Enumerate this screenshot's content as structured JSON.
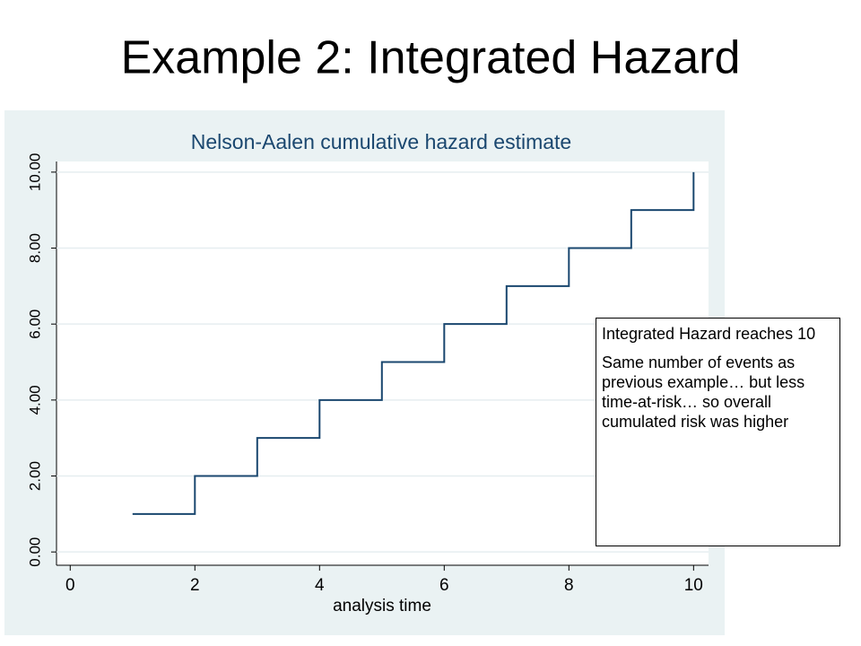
{
  "slide_title": "Example 2:  Integrated Hazard",
  "chart_data": {
    "type": "step",
    "title": "Nelson-Aalen cumulative hazard estimate",
    "x_label": "analysis time",
    "series": [
      {
        "name": "Nelson-Aalen",
        "color": "#1a476f",
        "x": [
          1,
          2,
          3,
          4,
          5,
          6,
          7,
          8,
          9,
          10
        ],
        "values": [
          1,
          2,
          3,
          4,
          5,
          6,
          7,
          8,
          9,
          10
        ]
      }
    ],
    "xlim": [
      -0.22,
      10.24
    ],
    "ylim": [
      -0.35,
      10.28
    ],
    "xticks": [
      0,
      2,
      4,
      6,
      8,
      10
    ],
    "yticks": [
      {
        "value": 0,
        "label": "0.00"
      },
      {
        "value": 2,
        "label": "2.00"
      },
      {
        "value": 4,
        "label": "4.00"
      },
      {
        "value": 6,
        "label": "6.00"
      },
      {
        "value": 8,
        "label": "8.00"
      },
      {
        "value": 10,
        "label": "10.00"
      }
    ],
    "grid": true,
    "annotation": [
      "Integrated Hazard reaches 10",
      "Same number of events as previous example… but less time-at-risk… so overall cumulated risk was higher"
    ]
  }
}
